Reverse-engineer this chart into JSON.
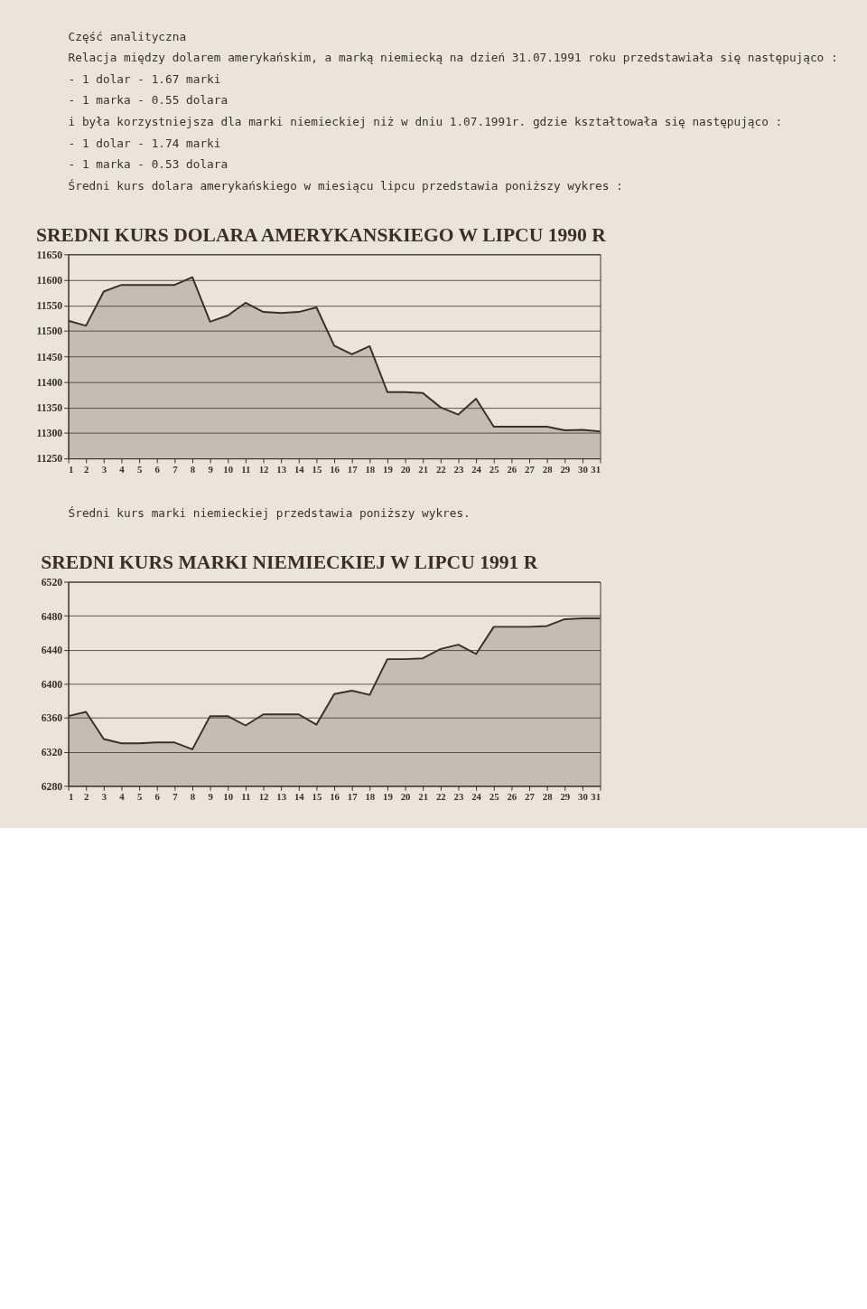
{
  "chart_data": [
    {
      "type": "area",
      "title": "SREDNI KURS DOLARA AMERYKANSKIEGO W LIPCU 1990 R",
      "annotations": [
        "Część analityczna",
        "Relacja między dolarem amerykańskim, a marką niemiecką na dzień 31.07.1991 roku przedstawiała się następująco :",
        "- 1 dolar - 1.67 marki",
        "- 1 marka - 0.55 dolara",
        "i była korzystniejsza dla marki niemieckiej niż w dniu 1.07.1991r. gdzie kształtowała się następująco :",
        "- 1 dolar - 1.74 marki",
        "- 1 marka - 0.53 dolara",
        "Średni kurs dolara amerykańskiego w miesiącu lipcu przedstawia poniższy wykres :"
      ],
      "x": [
        1,
        2,
        3,
        4,
        5,
        6,
        7,
        8,
        9,
        10,
        11,
        12,
        13,
        14,
        15,
        16,
        17,
        18,
        19,
        20,
        21,
        22,
        23,
        24,
        25,
        26,
        27,
        28,
        29,
        30,
        31
      ],
      "series": [
        {
          "color": "#3a3028",
          "values": [
            11520,
            11510,
            11577,
            11590,
            11590,
            11590,
            11590,
            11605,
            11518,
            11530,
            11555,
            11537,
            11535,
            11537,
            11546,
            11471,
            11454,
            11470,
            11380,
            11380,
            11378,
            11350,
            11336,
            11367,
            11312,
            11312,
            11312,
            11312,
            11305,
            11306,
            11303
          ]
        }
      ],
      "xlim": [
        1,
        31
      ],
      "xticks": [
        1,
        2,
        3,
        4,
        5,
        6,
        7,
        8,
        9,
        10,
        11,
        12,
        13,
        14,
        15,
        16,
        17,
        18,
        19,
        20,
        21,
        22,
        23,
        24,
        25,
        26,
        27,
        28,
        29,
        30,
        31
      ],
      "ylim": [
        11250,
        11650
      ],
      "yticks": [
        11250,
        11300,
        11350,
        11400,
        11450,
        11500,
        11550,
        11600,
        11650
      ],
      "grid": "y"
    },
    {
      "type": "area",
      "title": "SREDNI KURS MARKI NIEMIECKIEJ W LIPCU 1991 R",
      "annotations": [
        "Średni kurs marki niemieckiej przedstawia poniższy wykres."
      ],
      "x": [
        1,
        2,
        3,
        4,
        5,
        6,
        7,
        8,
        9,
        10,
        11,
        12,
        13,
        14,
        15,
        16,
        17,
        18,
        19,
        20,
        21,
        22,
        23,
        24,
        25,
        26,
        27,
        28,
        29,
        30,
        31
      ],
      "series": [
        {
          "color": "#3a3028",
          "values": [
            6362,
            6367,
            6335,
            6330,
            6330,
            6331,
            6331,
            6323,
            6362,
            6362,
            6351,
            6364,
            6364,
            6364,
            6352,
            6388,
            6392,
            6387,
            6429,
            6429,
            6430,
            6441,
            6446,
            6435,
            6467,
            6467,
            6467,
            6468,
            6476,
            6477,
            6477
          ]
        }
      ],
      "xlim": [
        1,
        31
      ],
      "xticks": [
        1,
        2,
        3,
        4,
        5,
        6,
        7,
        8,
        9,
        10,
        11,
        12,
        13,
        14,
        15,
        16,
        17,
        18,
        19,
        20,
        21,
        22,
        23,
        24,
        25,
        26,
        27,
        28,
        29,
        30,
        31
      ],
      "ylim": [
        6280,
        6520
      ],
      "yticks": [
        6280,
        6320,
        6360,
        6400,
        6440,
        6480,
        6520
      ],
      "grid": "y"
    }
  ]
}
